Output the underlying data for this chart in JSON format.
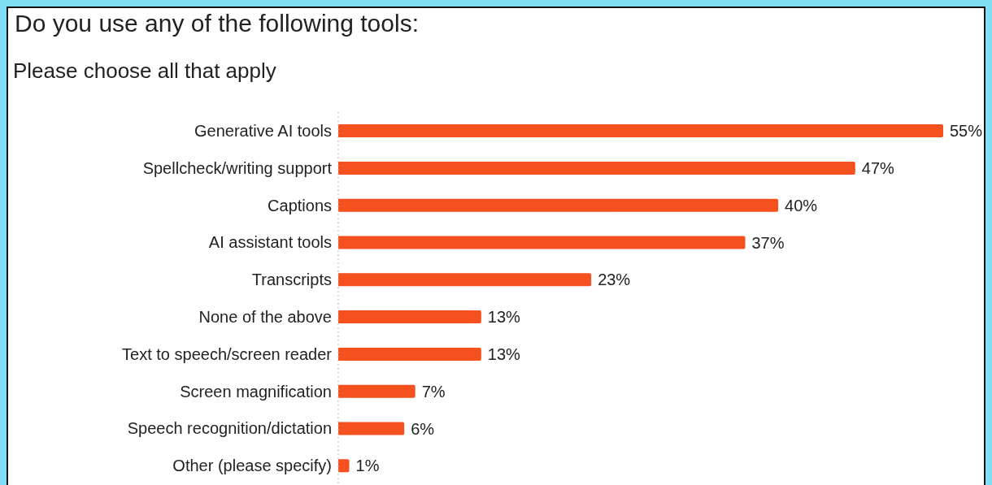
{
  "chart_data": {
    "type": "bar",
    "orientation": "horizontal",
    "title": "Do you use any of the following tools:",
    "subtitle": "Please choose all that apply",
    "categories": [
      "Generative AI tools",
      "Spellcheck/writing support",
      "Captions",
      "AI assistant tools",
      "Transcripts",
      "None of the above",
      "Text to speech/screen reader",
      "Screen magnification",
      "Speech recognition/dictation",
      "Other (please specify)"
    ],
    "values": [
      55,
      47,
      40,
      37,
      23,
      13,
      13,
      7,
      6,
      1
    ],
    "value_labels": [
      "55%",
      "47%",
      "40%",
      "37%",
      "23%",
      "13%",
      "13%",
      "7%",
      "6%",
      "1%"
    ],
    "color": "#f4511e",
    "relative": false,
    "grid": false,
    "legend": false
  }
}
